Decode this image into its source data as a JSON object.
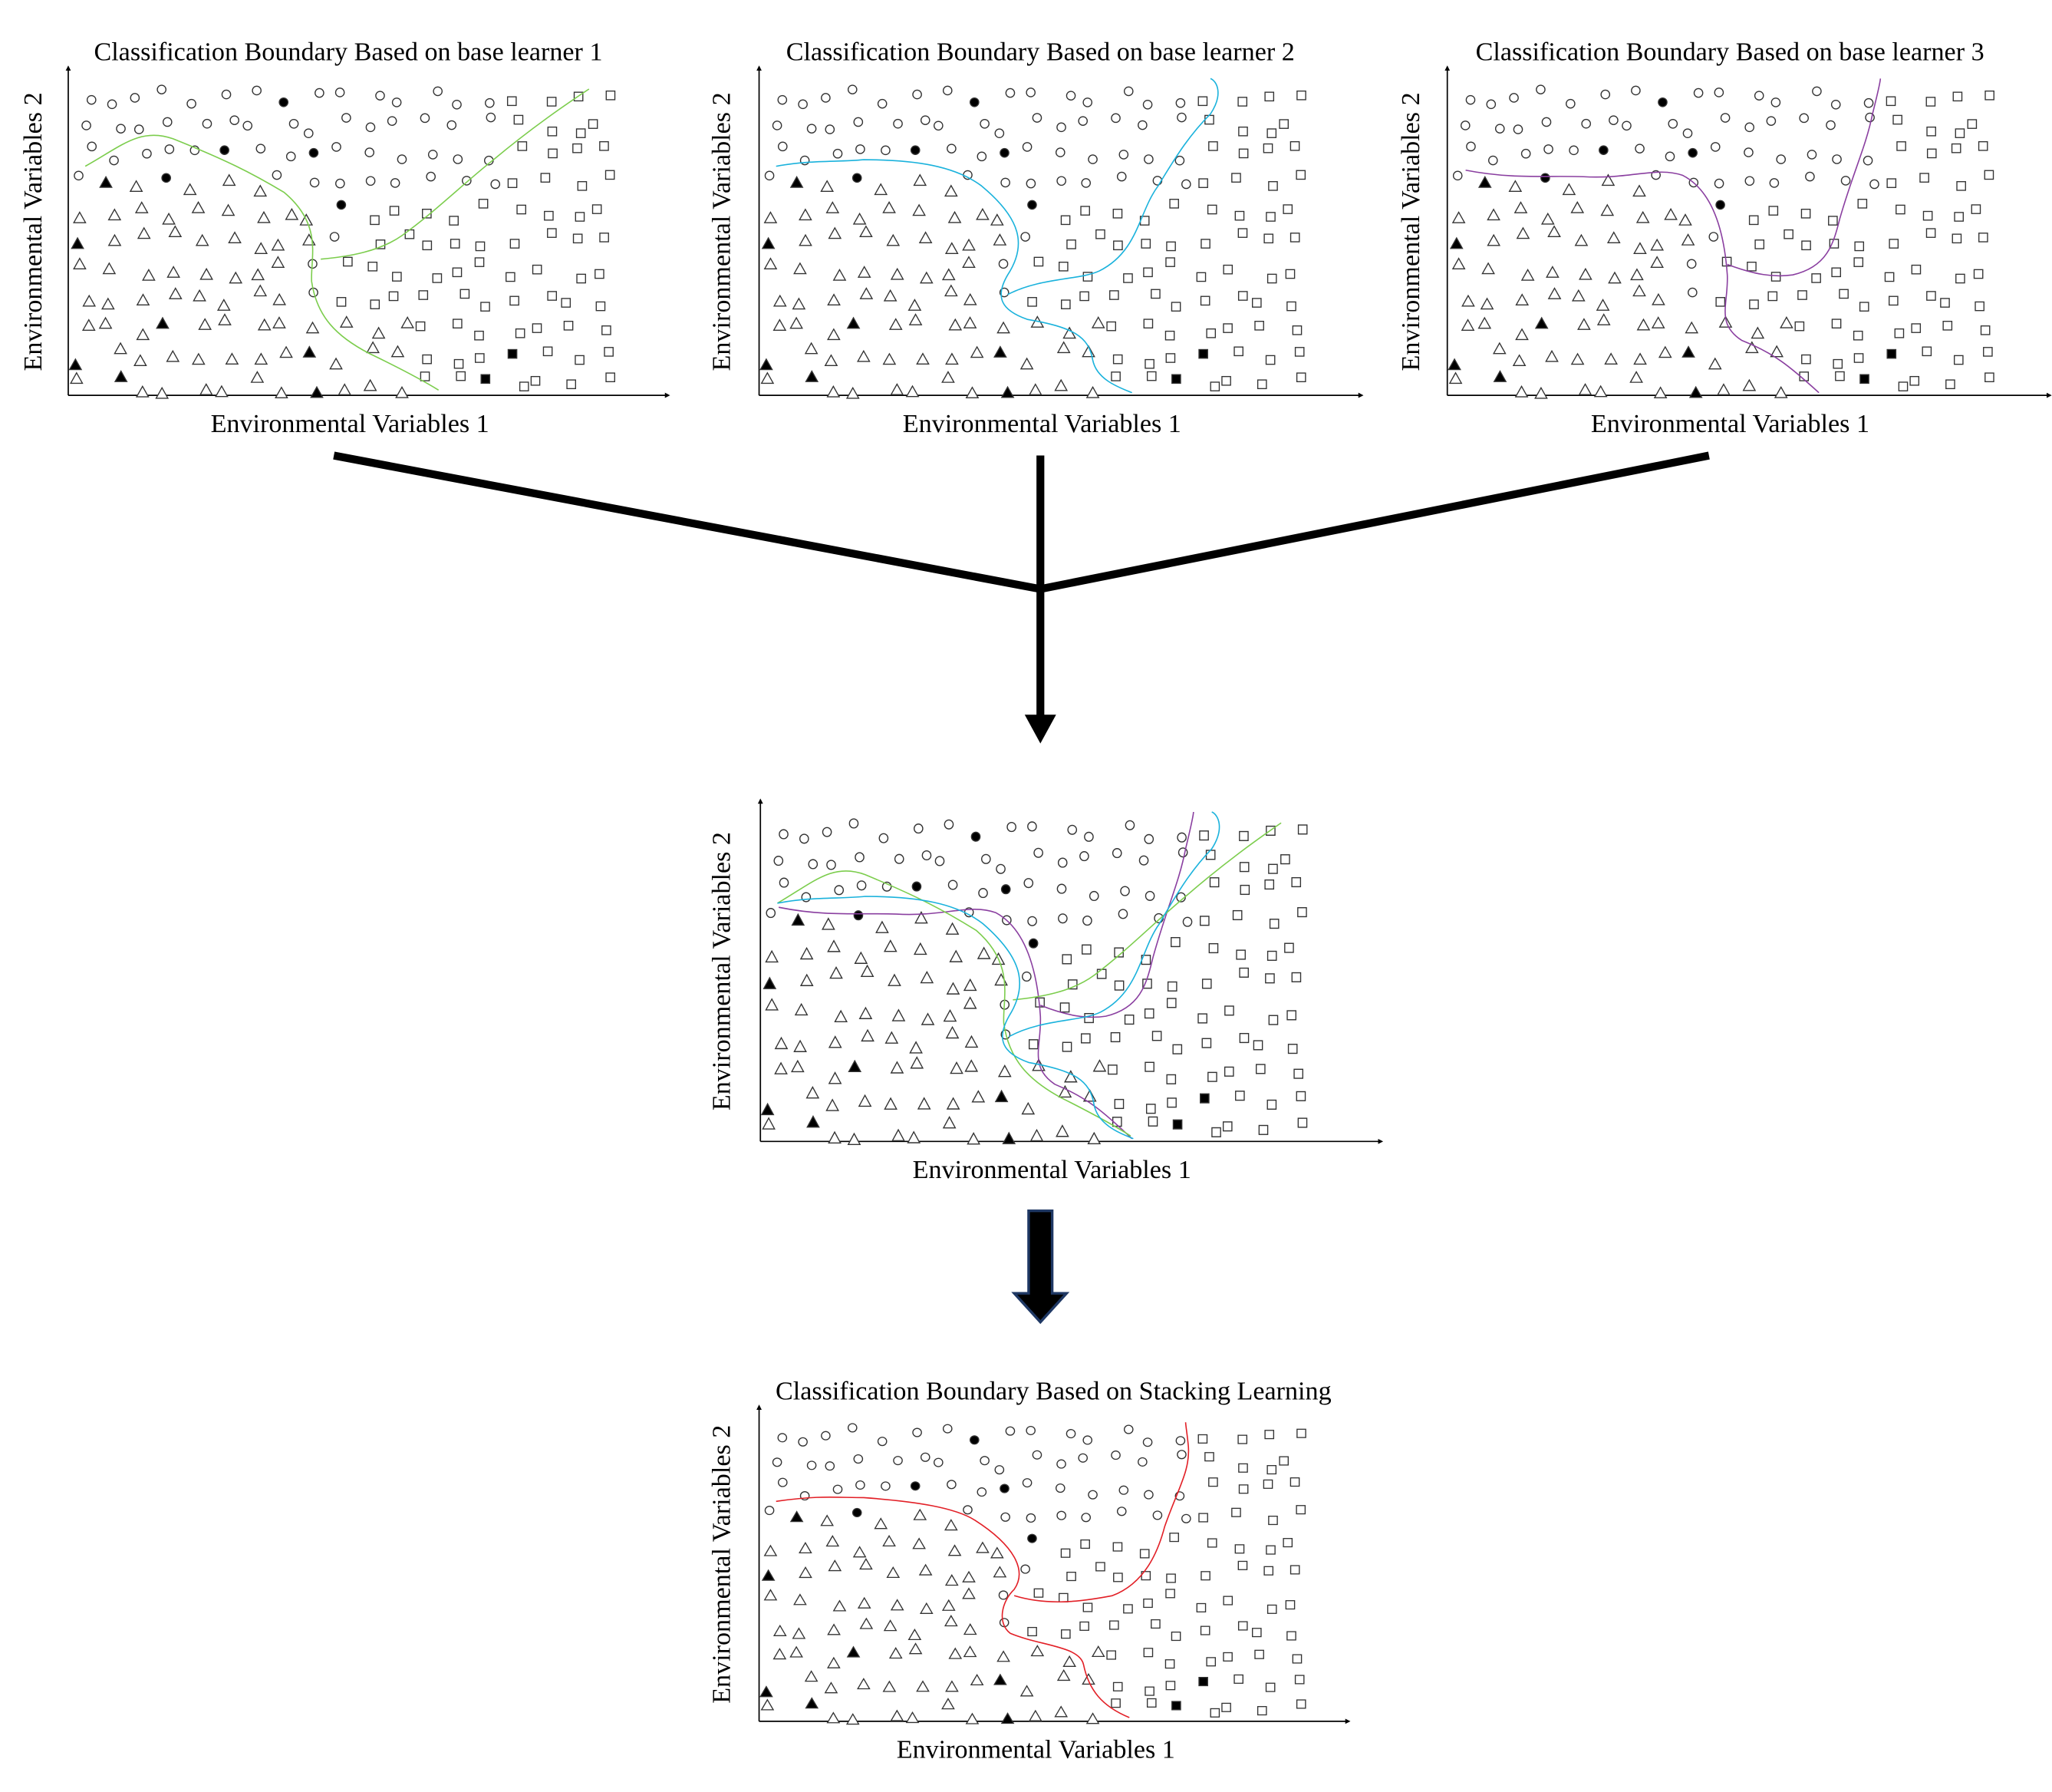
{
  "panels": [
    {
      "title": "Classification Boundary Based on base learner 1",
      "x_label": "Environmental Variables 1",
      "y_label": "Environmental Variables 2"
    },
    {
      "title": "Classification Boundary Based on base learner 2",
      "x_label": "Environmental Variables 1",
      "y_label": "Environmental Variables 2"
    },
    {
      "title": "Classification Boundary Based on base learner 3",
      "x_label": "Environmental Variables 1",
      "y_label": "Environmental Variables 2"
    },
    {
      "x_label": "Environmental Variables 1",
      "y_label": "Environmental Variables 2"
    },
    {
      "title": "Classification Boundary Based on Stacking Learning",
      "x_label": "Environmental Variables 1",
      "y_label": "Environmental Variables 2"
    }
  ]
}
